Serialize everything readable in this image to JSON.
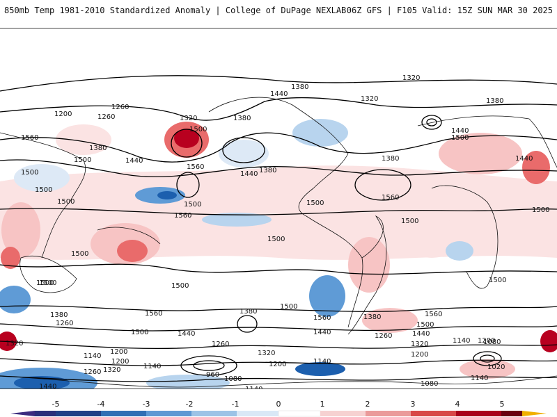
{
  "header": {
    "title_left": "850mb Temp 1981-2010 Standardized Anomaly | College of DuPage NEXLAB",
    "title_right": "06Z GFS | F105 Valid: 15Z SUN MAR 30 2025"
  },
  "map": {
    "contour_labels": [
      "1320",
      "1380",
      "1440",
      "1380",
      "1320",
      "1380",
      "1200",
      "1260",
      "1260",
      "1320",
      "1500",
      "1380",
      "1440",
      "1500",
      "1560",
      "1500",
      "1560",
      "1380",
      "1440",
      "1500",
      "1560",
      "1500",
      "1440",
      "1380",
      "1500",
      "1440",
      "1500",
      "1500",
      "1560",
      "1500",
      "1500",
      "1500",
      "1500",
      "1500",
      "1500",
      "1560",
      "1500",
      "1380",
      "1260",
      "1320",
      "1500",
      "1440",
      "1380",
      "1560",
      "1440",
      "1500",
      "1500",
      "1380",
      "1560",
      "1440",
      "1320",
      "1260",
      "1200",
      "1260",
      "1140",
      "1200",
      "1140",
      "1320",
      "1200",
      "1140",
      "1320",
      "1200",
      "960",
      "1080",
      "1260",
      "1140",
      "1200",
      "1140",
      "1080",
      "1020",
      "1200",
      "1080",
      "1440",
      "1380",
      "1320",
      "1260",
      "1140",
      "1200",
      "1260",
      "1500"
    ],
    "colors": {
      "strong_warm": "#b8001f",
      "warm": "#e96b6b",
      "light_warm": "#f7c4c4",
      "faint_warm": "#fbe3e3",
      "strong_cold": "#1c5fae",
      "cold": "#5f9bd6",
      "light_cold": "#b8d4ee",
      "faint_cold": "#dde9f6",
      "coastline": "#111111",
      "contour": "#000000"
    }
  },
  "colorbar": {
    "ticks": [
      "-5",
      "-4",
      "-3",
      "-2",
      "-1",
      "0",
      "1",
      "2",
      "3",
      "4",
      "5"
    ],
    "colors": [
      "#3b2b7e",
      "#1f3f86",
      "#2f6fb4",
      "#5c98d3",
      "#9cc3e6",
      "#d9e8f6",
      "#ffffff",
      "#f6d1d1",
      "#ea9a9a",
      "#d84848",
      "#a8001a",
      "#6a0010",
      "#f0b000"
    ]
  }
}
